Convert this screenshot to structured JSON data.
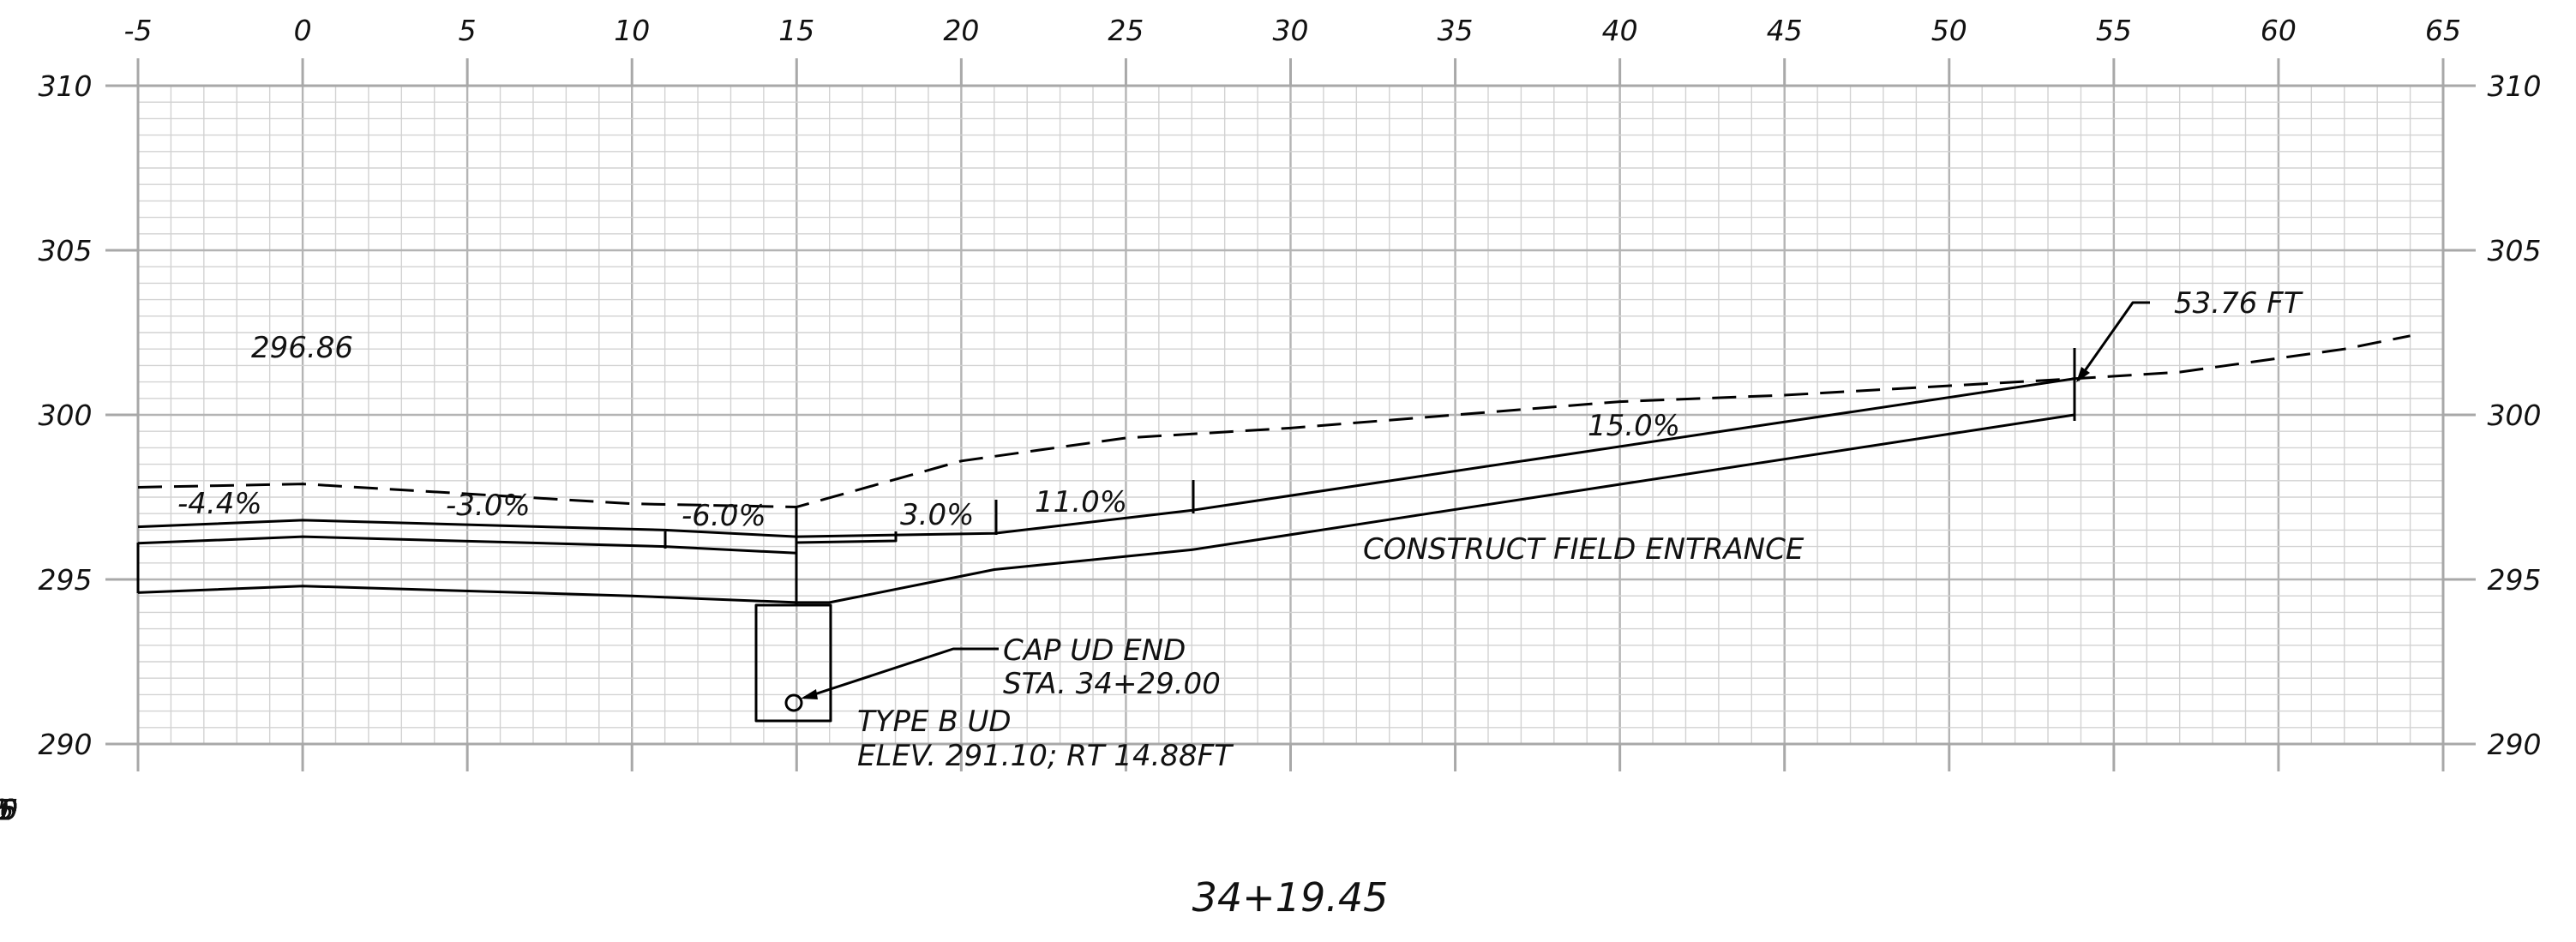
{
  "drawing": {
    "station_title": "34+19.45",
    "offset_ticks": [
      "-5",
      "0",
      "5",
      "10",
      "15",
      "20",
      "25",
      "30",
      "35",
      "40",
      "45",
      "50",
      "55",
      "60",
      "65"
    ],
    "elevation_ticks": [
      "310",
      "305",
      "300",
      "295",
      "290"
    ],
    "x_range": [
      -5,
      65
    ],
    "y_range": [
      290,
      310
    ],
    "ground_elevation_label": "296.86",
    "slopes": [
      "-4.4%",
      "-3.0%",
      "-6.0%",
      "3.0%",
      "11.0%",
      "15.0%"
    ],
    "callouts": {
      "offset": "53.76 FT",
      "construct": "CONSTRUCT FIELD ENTRANCE",
      "cap_line1": "CAP UD END",
      "cap_line2": "STA. 34+29.00",
      "ud_line1": "TYPE B UD",
      "ud_line2": "ELEV. 291.10; RT 14.88FT"
    }
  },
  "chart_data": {
    "type": "line",
    "title": "34+19.45",
    "xlabel": "",
    "ylabel": "",
    "xlim": [
      -5,
      65
    ],
    "ylim": [
      290,
      310
    ],
    "grid": true,
    "series": [
      {
        "x": [
          -5,
          0,
          10,
          15,
          20,
          25,
          30,
          40,
          45,
          53.8,
          57,
          62,
          64
        ],
        "y": [
          297.8,
          297.9,
          297.3,
          297.2,
          298.6,
          299.3,
          299.6,
          300.4,
          300.6,
          301.1,
          301.3,
          302.0,
          302.4
        ]
      },
      {
        "x": [
          -5,
          0,
          11,
          15,
          21,
          27,
          53.8
        ],
        "y": [
          296.6,
          296.8,
          296.5,
          296.3,
          296.4,
          297.1,
          301.1
        ]
      },
      {
        "x": [
          -5,
          0,
          11,
          15
        ],
        "y": [
          296.1,
          296.3,
          296.0,
          295.8
        ]
      },
      {
        "x": [
          -5,
          0,
          10,
          15,
          16,
          21,
          27,
          53.8
        ],
        "y": [
          294.6,
          294.8,
          294.5,
          294.3,
          294.3,
          295.3,
          295.9,
          300.0
        ]
      }
    ]
  }
}
